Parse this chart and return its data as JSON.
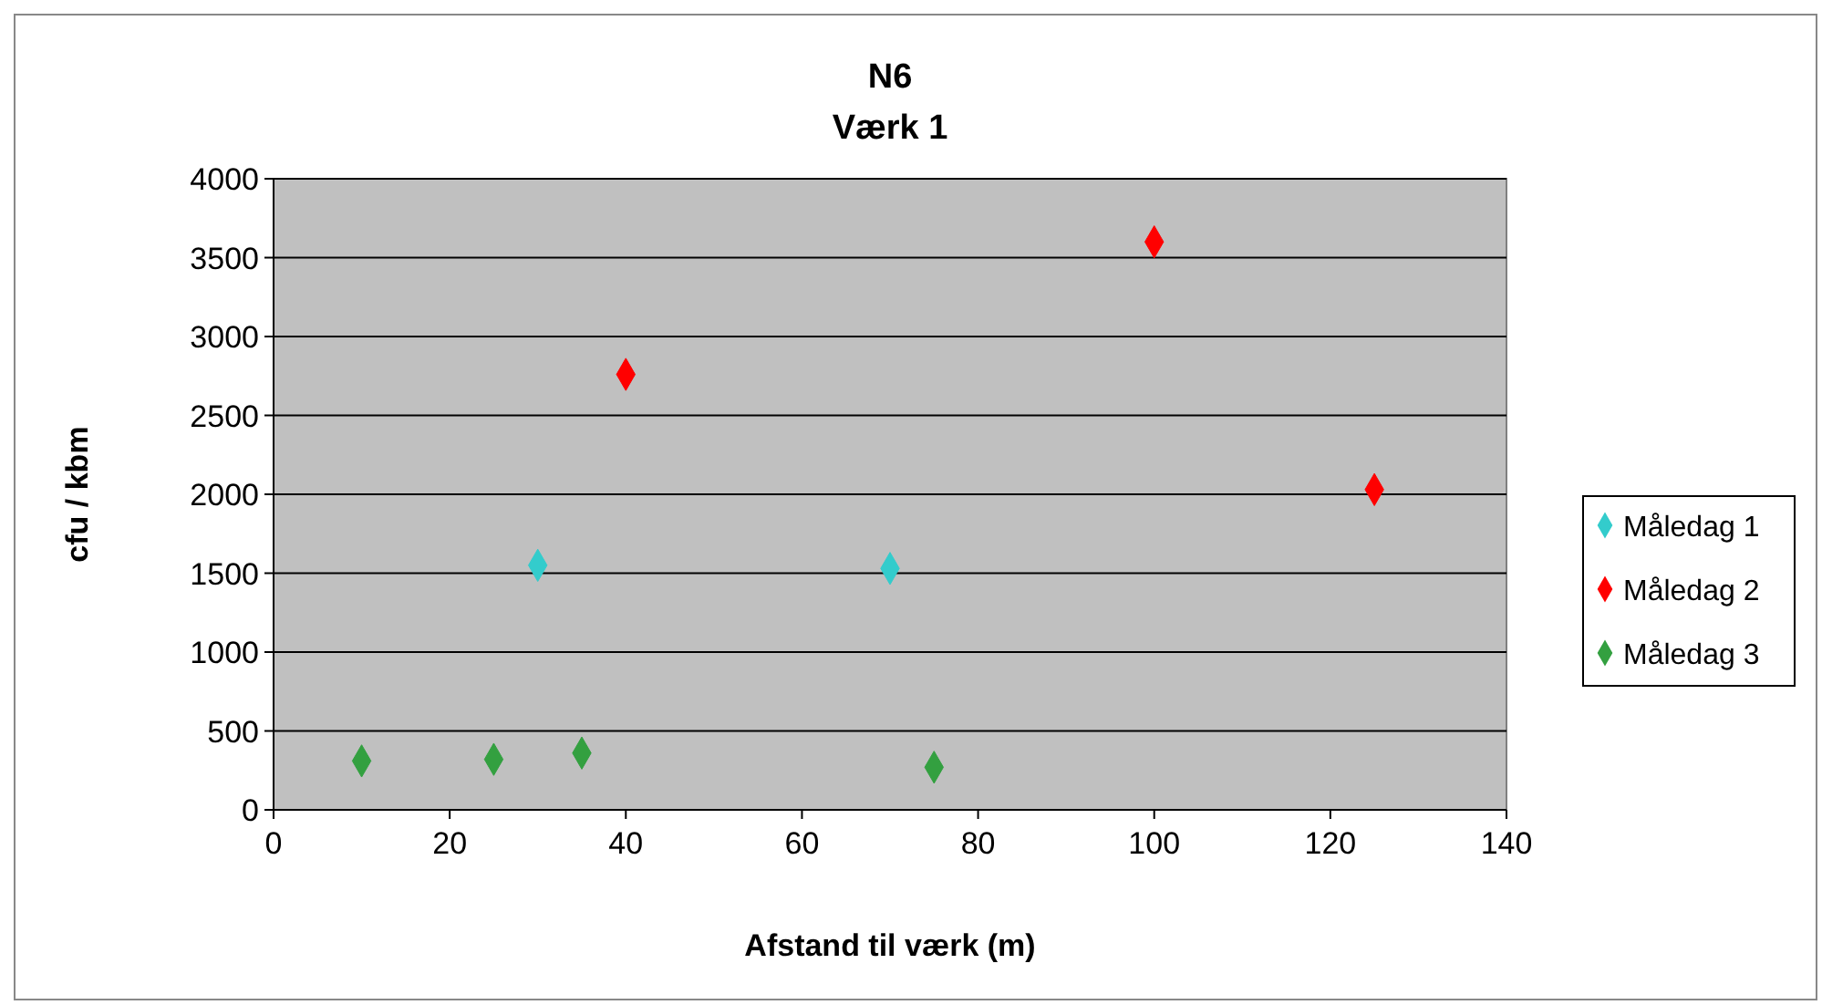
{
  "chart_data": {
    "type": "scatter",
    "title": "N6",
    "subtitle": "Værk 1",
    "xlabel": "Afstand til værk (m)",
    "ylabel": "cfu / kbm",
    "xlim": [
      0,
      140
    ],
    "xticks": [
      0,
      20,
      40,
      60,
      80,
      100,
      120,
      140
    ],
    "ylim": [
      0,
      4000
    ],
    "yticks": [
      0,
      500,
      1000,
      1500,
      2000,
      2500,
      3000,
      3500,
      4000
    ],
    "grid": "y",
    "legend": "right",
    "marker": "diamond",
    "series": [
      {
        "name": "Måledag 1",
        "color": "#33cccc",
        "x": [
          30,
          70
        ],
        "values": [
          1550,
          1530
        ]
      },
      {
        "name": "Måledag 2",
        "color": "#ff0000",
        "x": [
          40,
          100,
          125
        ],
        "values": [
          2760,
          3600,
          2030
        ]
      },
      {
        "name": "Måledag 3",
        "color": "#33a040",
        "x": [
          10,
          25,
          35,
          75
        ],
        "values": [
          310,
          320,
          360,
          270
        ]
      }
    ]
  }
}
